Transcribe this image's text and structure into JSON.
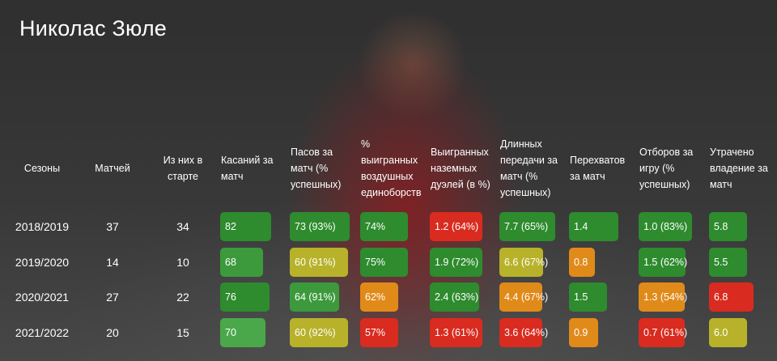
{
  "title": "Николас Зюле",
  "columns": [
    "Сезоны",
    "Матчей",
    "Из них в старте",
    "Касаний за матч",
    "Пасов за матч (% успешных)",
    "% выигранных воздушных единоборств",
    "Выигранных наземных дуэлей (в %)",
    "Длинных передачи за матч (% успешных)",
    "Перехватов за матч",
    "Отборов за игру (% успешных)",
    "Утрачено владение за матч"
  ],
  "rows": [
    {
      "season": "2018/2019",
      "matches": "37",
      "starts": "34",
      "cells": [
        {
          "text": "82",
          "color": "#2e8b2e"
        },
        {
          "text": "73 (93%)",
          "color": "#2e8b2e"
        },
        {
          "text": "74%",
          "color": "#2e8b2e"
        },
        {
          "text": "1.2 (64%)",
          "color": "#d92b1f"
        },
        {
          "text": "7.7 (65%)",
          "color": "#2e8b2e"
        },
        {
          "text": "1.4",
          "color": "#2e8b2e"
        },
        {
          "text": "1.0 (83%)",
          "color": "#2e8b2e"
        },
        {
          "text": "5.8",
          "color": "#2e8b2e"
        }
      ]
    },
    {
      "season": "2019/2020",
      "matches": "14",
      "starts": "10",
      "cells": [
        {
          "text": "68",
          "color": "#3c9a3c"
        },
        {
          "text": "60 (91%)",
          "color": "#b7b22a"
        },
        {
          "text": "75%",
          "color": "#2e8b2e"
        },
        {
          "text": "1.9 (72%)",
          "color": "#2e8b2e"
        },
        {
          "text": "6.6 (67%)",
          "color": "#b7b22a"
        },
        {
          "text": "0.8",
          "color": "#e08a1a"
        },
        {
          "text": "1.5 (62%)",
          "color": "#2e8b2e"
        },
        {
          "text": "5.5",
          "color": "#2e8b2e"
        }
      ]
    },
    {
      "season": "2020/2021",
      "matches": "27",
      "starts": "22",
      "cells": [
        {
          "text": "76",
          "color": "#2e8b2e"
        },
        {
          "text": "64 (91%)",
          "color": "#3c9a3c"
        },
        {
          "text": "62%",
          "color": "#e08a1a"
        },
        {
          "text": "2.4 (63%)",
          "color": "#2e8b2e"
        },
        {
          "text": "4.4 (67%)",
          "color": "#e08a1a"
        },
        {
          "text": "1.5",
          "color": "#2e8b2e"
        },
        {
          "text": "1.3 (54%)",
          "color": "#e08a1a"
        },
        {
          "text": "6.8",
          "color": "#d92b1f"
        }
      ]
    },
    {
      "season": "2021/2022",
      "matches": "20",
      "starts": "15",
      "cells": [
        {
          "text": "70",
          "color": "#4aa84a"
        },
        {
          "text": "60 (92%)",
          "color": "#b7b22a"
        },
        {
          "text": "57%",
          "color": "#d92b1f"
        },
        {
          "text": "1.3 (61%)",
          "color": "#d92b1f"
        },
        {
          "text": "3.6 (64%)",
          "color": "#d92b1f"
        },
        {
          "text": "0.9",
          "color": "#e08a1a"
        },
        {
          "text": "0.7 (61%)",
          "color": "#d92b1f"
        },
        {
          "text": "6.0",
          "color": "#b7b22a"
        }
      ]
    }
  ]
}
